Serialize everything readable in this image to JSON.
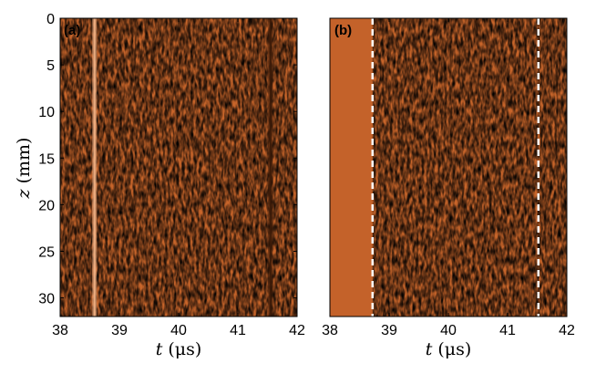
{
  "chart_data": [
    {
      "type": "heatmap",
      "panel_label": "(a)",
      "xlim": [
        38,
        42
      ],
      "ylim": [
        0,
        32
      ],
      "y_reversed": true,
      "xticks": [
        38,
        39,
        40,
        41,
        42
      ],
      "yticks": [
        0,
        5,
        10,
        15,
        20,
        25,
        30
      ],
      "xlabel": {
        "var": "t",
        "unit": " (μs)"
      },
      "ylabel": {
        "var": "z",
        "unit": " (mm)"
      },
      "colors": {
        "base": "#c8652a",
        "dark": "#3a1a08",
        "light": "#f3b386"
      },
      "vertical_features": [
        {
          "x": 38.58,
          "tone": "light"
        },
        {
          "x": 41.55,
          "tone": "dark"
        }
      ],
      "quiet_region": null,
      "dashed_lines": []
    },
    {
      "type": "heatmap",
      "panel_label": "(b)",
      "xlim": [
        38,
        42
      ],
      "ylim": [
        0,
        32
      ],
      "y_reversed": true,
      "xticks": [
        38,
        39,
        40,
        41,
        42
      ],
      "yticks": [],
      "xlabel": {
        "var": "t",
        "unit": " (μs)"
      },
      "ylabel": null,
      "colors": {
        "base": "#c8652a",
        "dark": "#3a1a08",
        "light": "#f3b386"
      },
      "vertical_features": [],
      "quiet_region": [
        38,
        38.72
      ],
      "dashed_lines": [
        38.72,
        41.52
      ]
    }
  ]
}
